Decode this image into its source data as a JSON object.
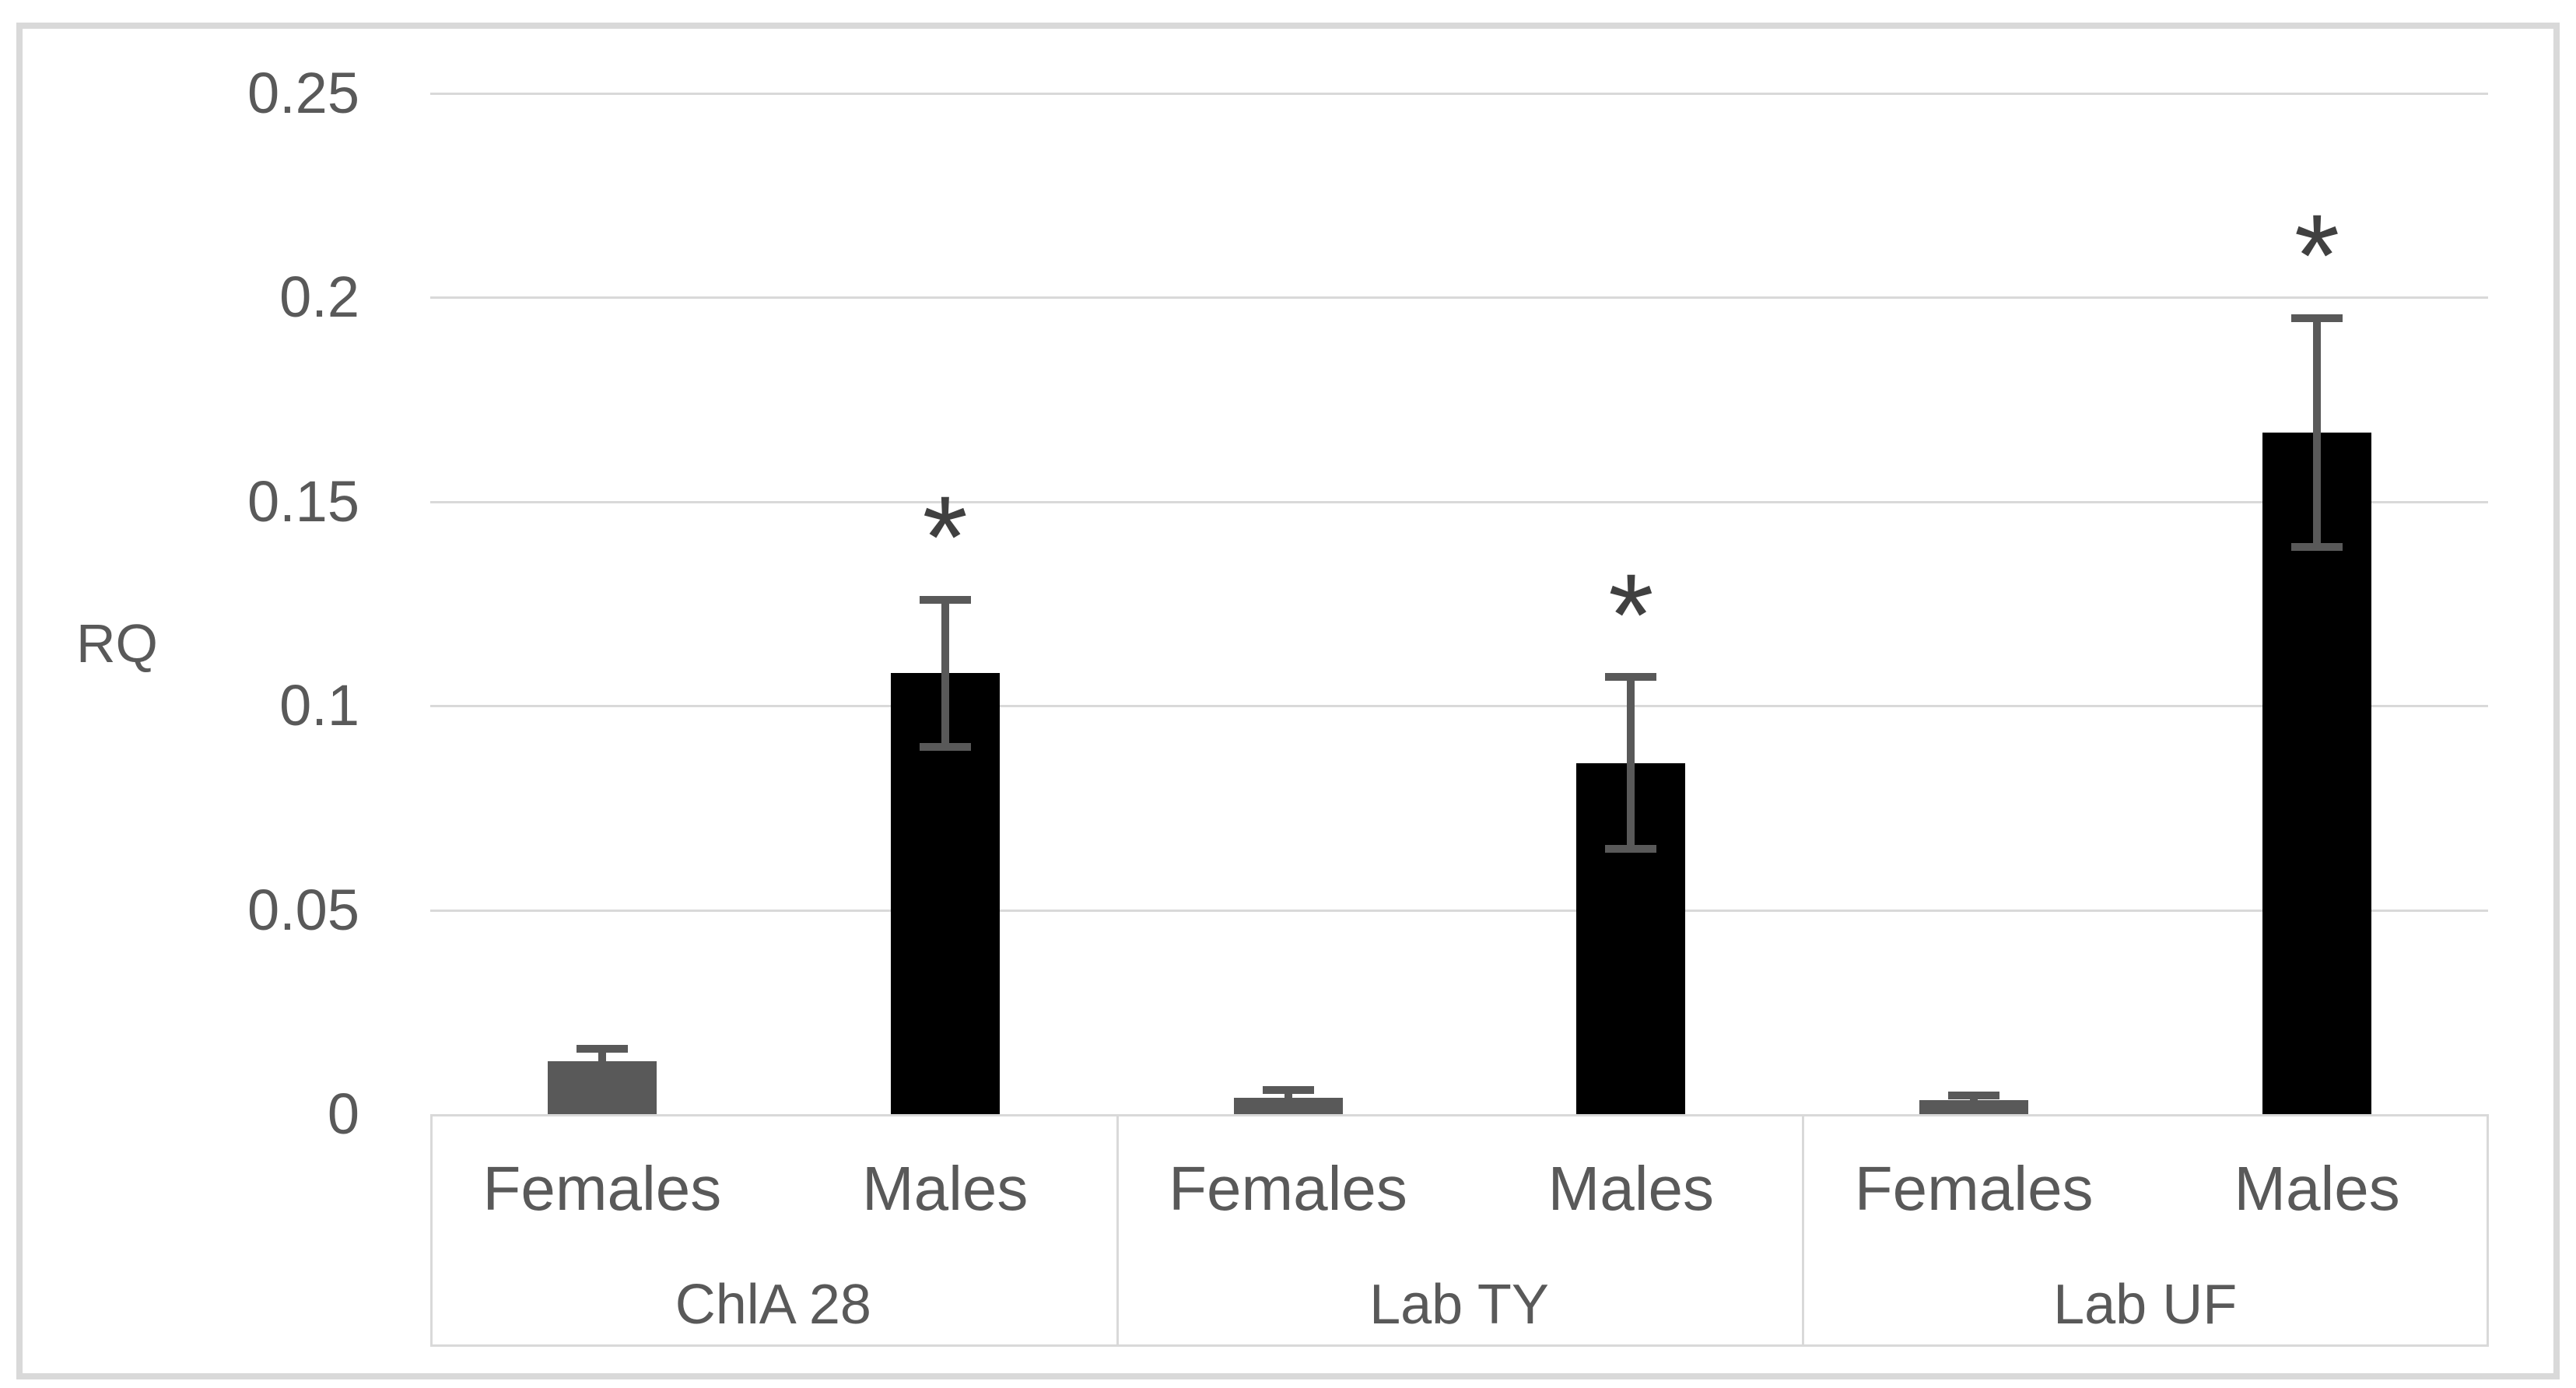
{
  "chart_data": {
    "type": "bar",
    "title": "",
    "ylabel": "RQ",
    "ylim": [
      0,
      0.25
    ],
    "grid": true,
    "legend": "none",
    "yticks": [
      {
        "label": "0",
        "value": 0
      },
      {
        "label": "0.05",
        "value": 0.05
      },
      {
        "label": "0.1",
        "value": 0.1
      },
      {
        "label": "0.15",
        "value": 0.15
      },
      {
        "label": "0.2",
        "value": 0.2
      },
      {
        "label": "0.25",
        "value": 0.25
      }
    ],
    "categories": [
      "ChlA 28",
      "Lab TY",
      "Lab UF"
    ],
    "series": [
      {
        "name": "Females",
        "values": [
          0.013,
          0.004,
          0.0035
        ],
        "errors": [
          0.003,
          0.002,
          0.001
        ],
        "color": "#595959",
        "significance": [
          "",
          "",
          ""
        ]
      },
      {
        "name": "Males",
        "values": [
          0.108,
          0.086,
          0.167
        ],
        "errors": [
          0.018,
          0.021,
          0.028
        ],
        "color": "#000000",
        "significance": [
          "*",
          "*",
          "*"
        ]
      }
    ],
    "colors": {
      "gridline": "#d9d9d9",
      "axis_box": "#d9d9d9",
      "frame": "#d9d9d9",
      "error_bar": "#595959",
      "text": "#595959",
      "significance": "#404040",
      "background": "#ffffff"
    }
  }
}
